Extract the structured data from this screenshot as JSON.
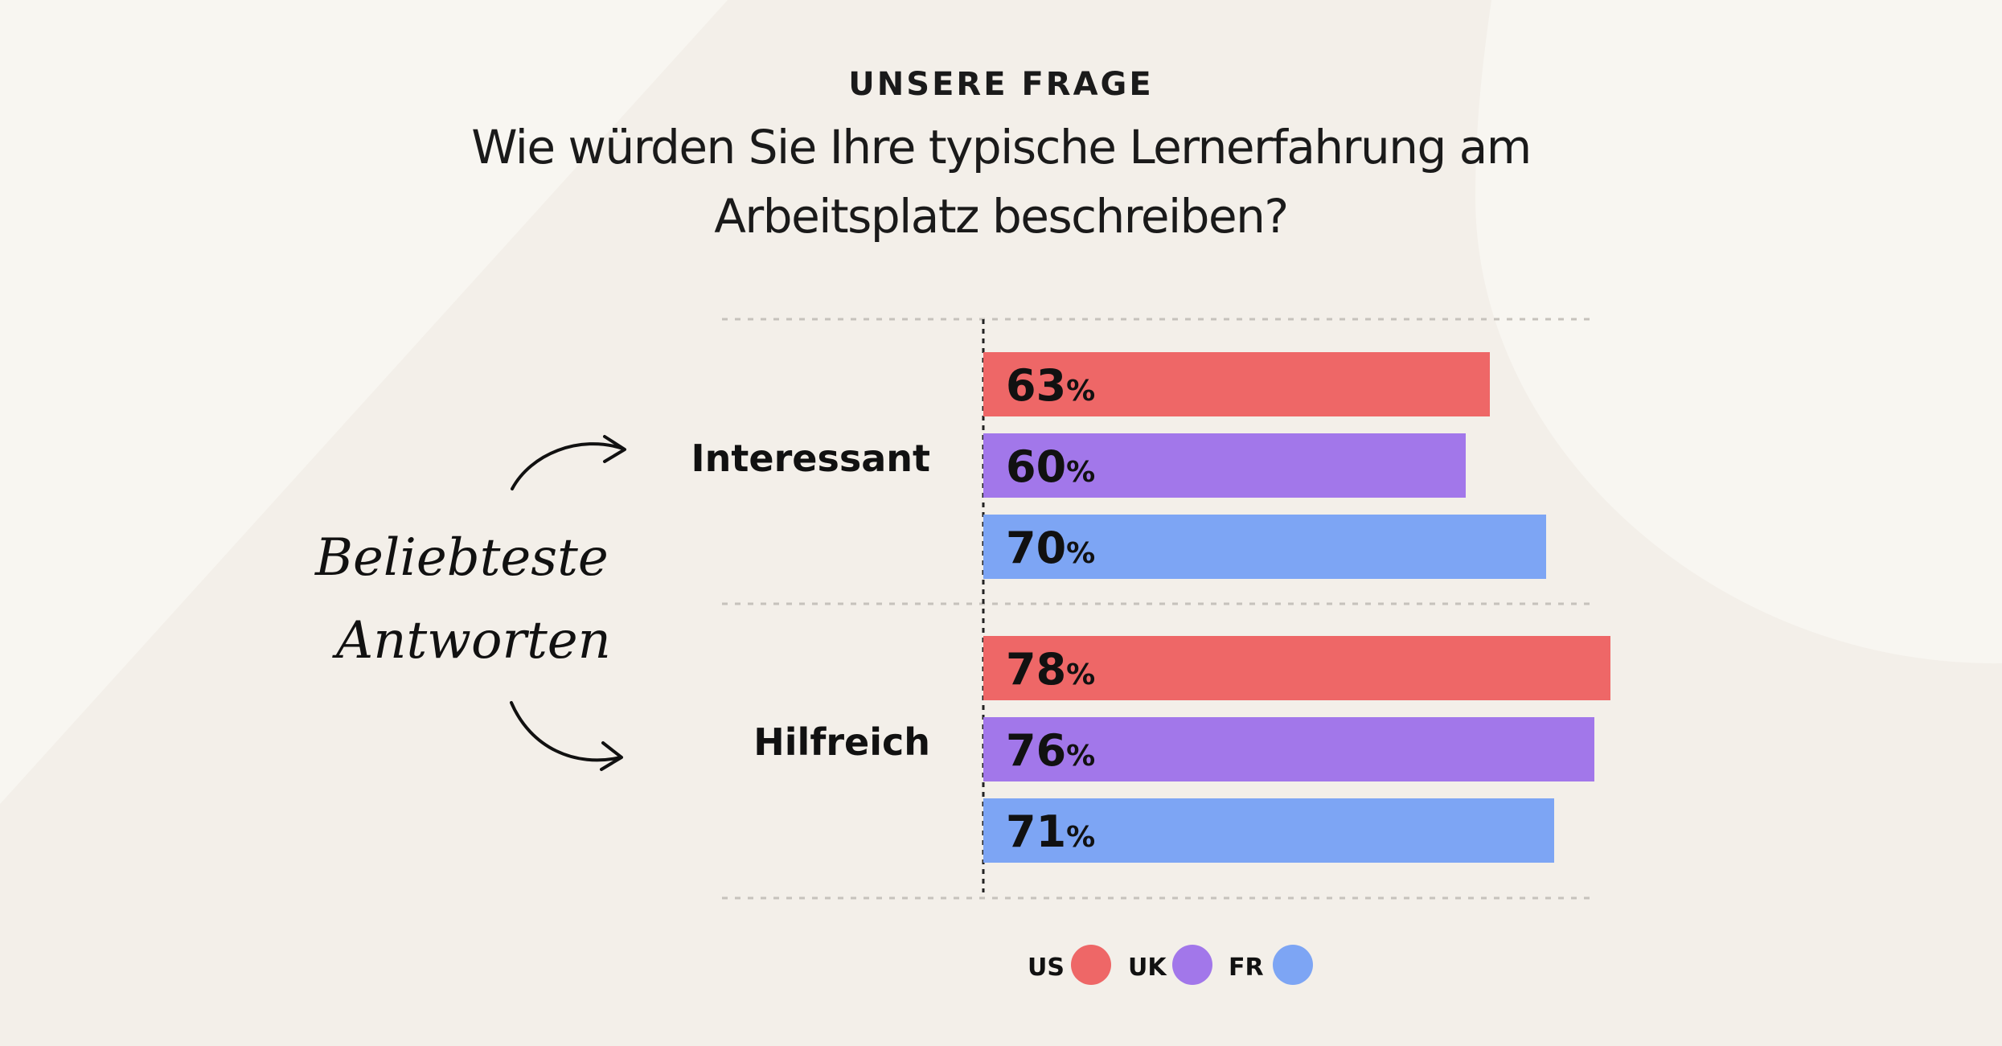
{
  "header": {
    "eyebrow": "UNSERE FRAGE",
    "question_line1": "Wie würden Sie Ihre typische Lernerfahrung am",
    "question_line2": "Arbeitsplatz beschreiben?"
  },
  "annotation": {
    "line1": "Beliebteste",
    "line2": "Antworten"
  },
  "colors": {
    "background": "#f3efe9",
    "US": "#ee6767",
    "UK": "#a277ea",
    "FR": "#7da5f4"
  },
  "chart_data": {
    "type": "bar",
    "orientation": "horizontal",
    "value_suffix": "%",
    "categories": [
      "Interessant",
      "Hilfreich"
    ],
    "series": [
      {
        "name": "US",
        "values": [
          63,
          78
        ]
      },
      {
        "name": "UK",
        "values": [
          60,
          76
        ]
      },
      {
        "name": "FR",
        "values": [
          70,
          71
        ]
      }
    ],
    "xlim": [
      0,
      100
    ],
    "grid": "dotted horizontal separators",
    "legend": "bottom-center"
  }
}
